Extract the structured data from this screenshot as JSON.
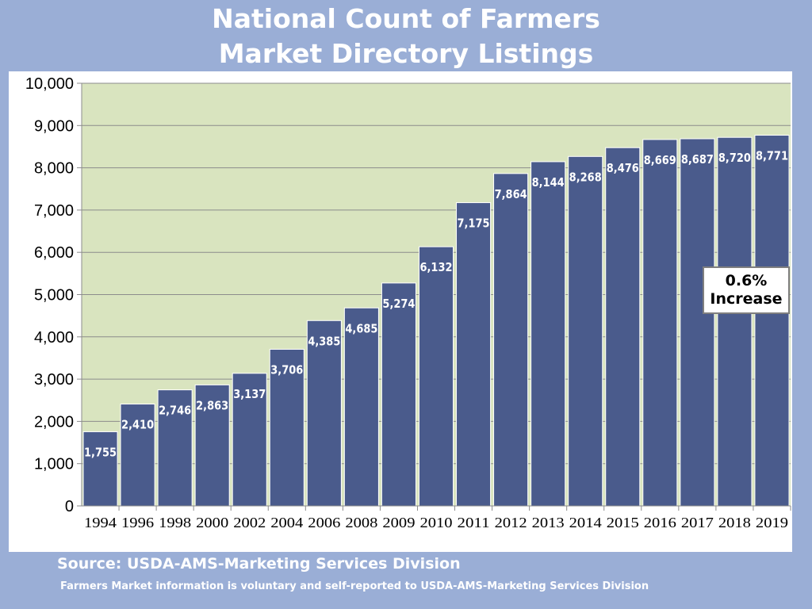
{
  "title_line1": "National Count of Farmers",
  "title_line2": "Market Directory Listings",
  "source": "Source:  USDA-AMS-Marketing Services Division",
  "note": "Farmers Market information is voluntary and self-reported to USDA-AMS-Marketing Services Division",
  "callout_line1": "0.6%",
  "callout_line2": "Increase",
  "colors": {
    "background": "#9aaed6",
    "plot_area": "#d9e4bf",
    "bar": "#4a5b8c",
    "bar_label": "#ffffff"
  },
  "chart_data": {
    "type": "bar",
    "title": "National Count of Farmers Market Directory Listings",
    "categories": [
      "1994",
      "1996",
      "1998",
      "2000",
      "2002",
      "2004",
      "2006",
      "2008",
      "2009",
      "2010",
      "2011",
      "2012",
      "2013",
      "2014",
      "2015",
      "2016",
      "2017",
      "2018",
      "2019"
    ],
    "values": [
      1755,
      2410,
      2746,
      2863,
      3137,
      3706,
      4385,
      4685,
      5274,
      6132,
      7175,
      7864,
      8144,
      8268,
      8476,
      8669,
      8687,
      8720,
      8771
    ],
    "value_labels": [
      "1,755",
      "2,410",
      "2,746",
      "2,863",
      "3,137",
      "3,706",
      "4,385",
      "4,685",
      "5,274",
      "6,132",
      "7,175",
      "7,864",
      "8,144",
      "8,268",
      "8,476",
      "8,669",
      "8,687",
      "8,720",
      "8,771"
    ],
    "ylim": [
      0,
      10000
    ],
    "yticks": [
      "0",
      "1,000",
      "2,000",
      "3,000",
      "4,000",
      "5,000",
      "6,000",
      "7,000",
      "8,000",
      "9,000",
      "10,000"
    ],
    "grid": true,
    "legend": "none"
  }
}
